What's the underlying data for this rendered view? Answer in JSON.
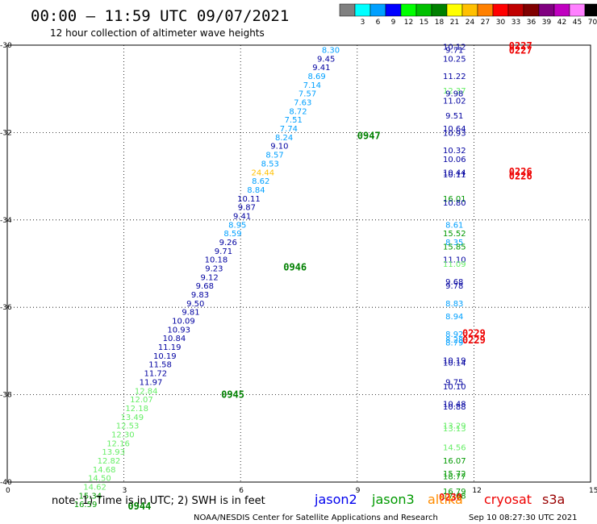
{
  "header": {
    "title": "00:00 – 11:59 UTC 09/07/2021",
    "subtitle": "12 hour collection of altimeter wave heights"
  },
  "colorbar": [
    {
      "label": "",
      "color": "#808080"
    },
    {
      "label": "3",
      "color": "#00ffff"
    },
    {
      "label": "6",
      "color": "#00a0ff"
    },
    {
      "label": "9",
      "color": "#0000ff"
    },
    {
      "label": "12",
      "color": "#00ff00"
    },
    {
      "label": "15",
      "color": "#00c000"
    },
    {
      "label": "18",
      "color": "#008000"
    },
    {
      "label": "21",
      "color": "#ffff00"
    },
    {
      "label": "24",
      "color": "#ffc000"
    },
    {
      "label": "27",
      "color": "#ff8000"
    },
    {
      "label": "30",
      "color": "#ff0000"
    },
    {
      "label": "33",
      "color": "#c00000"
    },
    {
      "label": "36",
      "color": "#800000"
    },
    {
      "label": "39",
      "color": "#800080"
    },
    {
      "label": "42",
      "color": "#c000c0"
    },
    {
      "label": "45",
      "color": "#ff80ff"
    },
    {
      "label": "70",
      "color": "#000000"
    }
  ],
  "chart_data": {
    "type": "scatter",
    "xlim": [
      0,
      15
    ],
    "ylim": [
      -40,
      -30
    ],
    "xticks": [
      "0",
      "3",
      "6",
      "9",
      "12",
      "15"
    ],
    "yticks": [
      "-30",
      "-32",
      "-34",
      "-36",
      "-38",
      "-40"
    ],
    "grid": true,
    "track_a": [
      {
        "x": 8.55,
        "y": -30.12,
        "v": "8.30",
        "c": "#00a0ff"
      },
      {
        "x": 8.43,
        "y": -30.32,
        "v": "9.45",
        "c": "#0000a0"
      },
      {
        "x": 8.31,
        "y": -30.52,
        "v": "9.41",
        "c": "#0000a0"
      },
      {
        "x": 8.19,
        "y": -30.72,
        "v": "8.69",
        "c": "#00a0ff"
      },
      {
        "x": 8.07,
        "y": -30.92,
        "v": "7.14",
        "c": "#00a0ff"
      },
      {
        "x": 7.95,
        "y": -31.12,
        "v": "7.57",
        "c": "#00a0ff"
      },
      {
        "x": 7.83,
        "y": -31.32,
        "v": "7.63",
        "c": "#00a0ff"
      },
      {
        "x": 7.71,
        "y": -31.52,
        "v": "8.72",
        "c": "#00a0ff"
      },
      {
        "x": 7.59,
        "y": -31.72,
        "v": "7.51",
        "c": "#00a0ff"
      },
      {
        "x": 7.47,
        "y": -31.92,
        "v": "7.74",
        "c": "#00a0ff"
      },
      {
        "x": 7.35,
        "y": -32.12,
        "v": "8.24",
        "c": "#00a0ff"
      },
      {
        "x": 7.23,
        "y": -32.32,
        "v": "9.10",
        "c": "#0000a0"
      },
      {
        "x": 7.11,
        "y": -32.52,
        "v": "8.57",
        "c": "#00a0ff"
      },
      {
        "x": 6.99,
        "y": -32.72,
        "v": "8.53",
        "c": "#00a0ff"
      },
      {
        "x": 6.87,
        "y": -32.92,
        "v": "24.44",
        "c": "#ffc000"
      },
      {
        "x": 6.75,
        "y": -33.12,
        "v": "8.62",
        "c": "#00a0ff"
      },
      {
        "x": 6.63,
        "y": -33.32,
        "v": "8.84",
        "c": "#00a0ff"
      },
      {
        "x": 6.51,
        "y": -33.52,
        "v": "10.11",
        "c": "#0000a0"
      },
      {
        "x": 6.39,
        "y": -33.72,
        "v": "9.87",
        "c": "#0000a0"
      },
      {
        "x": 6.27,
        "y": -33.92,
        "v": "9.41",
        "c": "#0000a0"
      },
      {
        "x": 6.15,
        "y": -34.12,
        "v": "8.95",
        "c": "#00a0ff"
      },
      {
        "x": 6.03,
        "y": -34.32,
        "v": "8.59",
        "c": "#00a0ff"
      },
      {
        "x": 5.91,
        "y": -34.52,
        "v": "9.26",
        "c": "#0000a0"
      },
      {
        "x": 5.79,
        "y": -34.72,
        "v": "9.71",
        "c": "#0000a0"
      },
      {
        "x": 5.67,
        "y": -34.92,
        "v": "10.18",
        "c": "#0000a0"
      },
      {
        "x": 5.55,
        "y": -35.12,
        "v": "9.23",
        "c": "#0000a0"
      },
      {
        "x": 5.43,
        "y": -35.32,
        "v": "9.12",
        "c": "#0000a0"
      },
      {
        "x": 5.31,
        "y": -35.52,
        "v": "9.68",
        "c": "#0000a0"
      },
      {
        "x": 5.19,
        "y": -35.72,
        "v": "9.83",
        "c": "#0000a0"
      },
      {
        "x": 5.07,
        "y": -35.92,
        "v": "9.50",
        "c": "#0000a0"
      },
      {
        "x": 4.95,
        "y": -36.12,
        "v": "9.81",
        "c": "#0000a0"
      },
      {
        "x": 4.83,
        "y": -36.32,
        "v": "10.09",
        "c": "#0000a0"
      },
      {
        "x": 4.71,
        "y": -36.52,
        "v": "10.93",
        "c": "#0000a0"
      },
      {
        "x": 4.59,
        "y": -36.72,
        "v": "10.84",
        "c": "#0000a0"
      },
      {
        "x": 4.47,
        "y": -36.92,
        "v": "11.19",
        "c": "#0000a0"
      },
      {
        "x": 4.35,
        "y": -37.12,
        "v": "10.19",
        "c": "#0000a0"
      },
      {
        "x": 4.23,
        "y": -37.32,
        "v": "11.58",
        "c": "#0000a0"
      },
      {
        "x": 4.11,
        "y": -37.52,
        "v": "11.72",
        "c": "#0000a0"
      },
      {
        "x": 3.99,
        "y": -37.72,
        "v": "11.97",
        "c": "#0000a0"
      },
      {
        "x": 3.87,
        "y": -37.92,
        "v": "12.84",
        "c": "#66ee66"
      },
      {
        "x": 3.75,
        "y": -38.12,
        "v": "12.07",
        "c": "#66ee66"
      },
      {
        "x": 3.63,
        "y": -38.32,
        "v": "12.18",
        "c": "#66ee66"
      },
      {
        "x": 3.51,
        "y": -38.52,
        "v": "13.49",
        "c": "#66ee66"
      },
      {
        "x": 3.39,
        "y": -38.72,
        "v": "12.53",
        "c": "#66ee66"
      },
      {
        "x": 3.27,
        "y": -38.92,
        "v": "12.30",
        "c": "#66ee66"
      },
      {
        "x": 3.15,
        "y": -39.12,
        "v": "12.16",
        "c": "#66ee66"
      },
      {
        "x": 3.03,
        "y": -39.32,
        "v": "13.93",
        "c": "#66ee66"
      },
      {
        "x": 2.91,
        "y": -39.52,
        "v": "12.82",
        "c": "#66ee66"
      },
      {
        "x": 2.79,
        "y": -39.72,
        "v": "14.68",
        "c": "#66ee66"
      },
      {
        "x": 2.67,
        "y": -39.92,
        "v": "14.50",
        "c": "#66ee66"
      },
      {
        "x": 2.55,
        "y": -40.12,
        "v": "14.62",
        "c": "#66ee66"
      },
      {
        "x": 2.43,
        "y": -40.32,
        "v": "15.34",
        "c": "#009900"
      },
      {
        "x": 2.31,
        "y": -40.52,
        "v": "16.59",
        "c": "#009900"
      }
    ],
    "track_b": [
      {
        "x": 11.5,
        "y": -30.05,
        "v": "10.12",
        "c": "#0000a0"
      },
      {
        "x": 11.5,
        "y": -30.12,
        "v": "9.71",
        "c": "#0000a0"
      },
      {
        "x": 11.5,
        "y": -30.32,
        "v": "10.25",
        "c": "#0000a0"
      },
      {
        "x": 11.5,
        "y": -30.72,
        "v": "11.22",
        "c": "#0000a0"
      },
      {
        "x": 11.5,
        "y": -31.05,
        "v": "12.37",
        "c": "#66ee66"
      },
      {
        "x": 11.5,
        "y": -31.12,
        "v": "9.98",
        "c": "#0000a0"
      },
      {
        "x": 11.5,
        "y": -31.28,
        "v": "11.02",
        "c": "#0000a0"
      },
      {
        "x": 11.5,
        "y": -31.62,
        "v": "9.51",
        "c": "#0000a0"
      },
      {
        "x": 11.5,
        "y": -31.92,
        "v": "10.64",
        "c": "#0000a0"
      },
      {
        "x": 11.5,
        "y": -32.02,
        "v": "10.93",
        "c": "#0000a0"
      },
      {
        "x": 11.5,
        "y": -32.42,
        "v": "10.32",
        "c": "#0000a0"
      },
      {
        "x": 11.5,
        "y": -32.62,
        "v": "10.06",
        "c": "#0000a0"
      },
      {
        "x": 11.5,
        "y": -32.92,
        "v": "10.44",
        "c": "#0000a0"
      },
      {
        "x": 11.5,
        "y": -32.97,
        "v": "10.11",
        "c": "#0000a0"
      },
      {
        "x": 11.5,
        "y": -33.52,
        "v": "16.01",
        "c": "#009900"
      },
      {
        "x": 11.5,
        "y": -33.62,
        "v": "10.80",
        "c": "#0000a0"
      },
      {
        "x": 11.5,
        "y": -34.12,
        "v": "8.61",
        "c": "#00a0ff"
      },
      {
        "x": 11.5,
        "y": -34.32,
        "v": "15.52",
        "c": "#009900"
      },
      {
        "x": 11.5,
        "y": -34.52,
        "v": "8.35",
        "c": "#00a0ff"
      },
      {
        "x": 11.5,
        "y": -34.62,
        "v": "15.85",
        "c": "#009900"
      },
      {
        "x": 11.5,
        "y": -34.92,
        "v": "11.10",
        "c": "#0000a0"
      },
      {
        "x": 11.5,
        "y": -35.02,
        "v": "11.09",
        "c": "#66ee66"
      },
      {
        "x": 11.5,
        "y": -35.42,
        "v": "9.68",
        "c": "#0000a0"
      },
      {
        "x": 11.5,
        "y": -35.52,
        "v": "9.78",
        "c": "#0000a0"
      },
      {
        "x": 11.5,
        "y": -35.92,
        "v": "8.83",
        "c": "#00a0ff"
      },
      {
        "x": 11.5,
        "y": -36.22,
        "v": "8.94",
        "c": "#00a0ff"
      },
      {
        "x": 11.5,
        "y": -36.62,
        "v": "8.92",
        "c": "#00a0ff"
      },
      {
        "x": 11.5,
        "y": -36.75,
        "v": "8.28",
        "c": "#00a0ff"
      },
      {
        "x": 11.5,
        "y": -36.82,
        "v": "8.79",
        "c": "#00a0ff"
      },
      {
        "x": 11.5,
        "y": -37.22,
        "v": "10.19",
        "c": "#0000a0"
      },
      {
        "x": 11.5,
        "y": -37.28,
        "v": "10.14",
        "c": "#0000a0"
      },
      {
        "x": 11.5,
        "y": -37.72,
        "v": "9.75",
        "c": "#0000a0"
      },
      {
        "x": 11.5,
        "y": -37.82,
        "v": "10.10",
        "c": "#0000a0"
      },
      {
        "x": 11.5,
        "y": -38.22,
        "v": "10.48",
        "c": "#0000a0"
      },
      {
        "x": 11.5,
        "y": -38.28,
        "v": "10.88",
        "c": "#0000a0"
      },
      {
        "x": 11.5,
        "y": -38.72,
        "v": "13.29",
        "c": "#66ee66"
      },
      {
        "x": 11.5,
        "y": -38.78,
        "v": "13.13",
        "c": "#66ee66"
      },
      {
        "x": 11.5,
        "y": -39.22,
        "v": "14.56",
        "c": "#66ee66"
      },
      {
        "x": 11.5,
        "y": -39.52,
        "v": "16.07",
        "c": "#009900"
      },
      {
        "x": 11.5,
        "y": -39.82,
        "v": "15.72",
        "c": "#009900"
      },
      {
        "x": 11.5,
        "y": -39.88,
        "v": "18.77",
        "c": "#009900"
      },
      {
        "x": 11.5,
        "y": -40.22,
        "v": "16.79",
        "c": "#009900"
      },
      {
        "x": 11.5,
        "y": -40.32,
        "v": "17.68",
        "c": "#009900"
      }
    ],
    "times": [
      {
        "x": 9.0,
        "y": -32.08,
        "t": "0947",
        "c": "#008000"
      },
      {
        "x": 7.1,
        "y": -35.08,
        "t": "0946",
        "c": "#008000"
      },
      {
        "x": 5.5,
        "y": -38.0,
        "t": "0945",
        "c": "#008000"
      },
      {
        "x": 3.1,
        "y": -40.55,
        "t": "0944",
        "c": "#008000"
      },
      {
        "x": 12.9,
        "y": -30.02,
        "t": "0227",
        "c": "#ee0000"
      },
      {
        "x": 12.9,
        "y": -30.12,
        "t": "0227",
        "c": "#ee0000"
      },
      {
        "x": 12.9,
        "y": -32.9,
        "t": "0226",
        "c": "#ee0000"
      },
      {
        "x": 12.9,
        "y": -33.0,
        "t": "0226",
        "c": "#ee0000"
      },
      {
        "x": 11.7,
        "y": -36.6,
        "t": "0229",
        "c": "#ee0000"
      },
      {
        "x": 11.7,
        "y": -36.75,
        "t": "0229",
        "c": "#ee0000"
      },
      {
        "x": 11.1,
        "y": -40.35,
        "t": "0230",
        "c": "#ee0000"
      }
    ]
  },
  "note": "note:  1) Time is in UTC; 2) SWH is in feet",
  "legend": [
    {
      "label": "jason2",
      "color": "#0000ee"
    },
    {
      "label": "jason3",
      "color": "#009900"
    },
    {
      "label": "altika",
      "color": "#ff8c00"
    },
    {
      "label": "cryosat",
      "color": "#ee0000"
    },
    {
      "label": "s3a",
      "color": "#990000"
    }
  ],
  "footer": {
    "center": "NOAA/NESDIS Center for Satellite Applications and Research",
    "right": "Sep 10 08:27:30 UTC 2021"
  }
}
